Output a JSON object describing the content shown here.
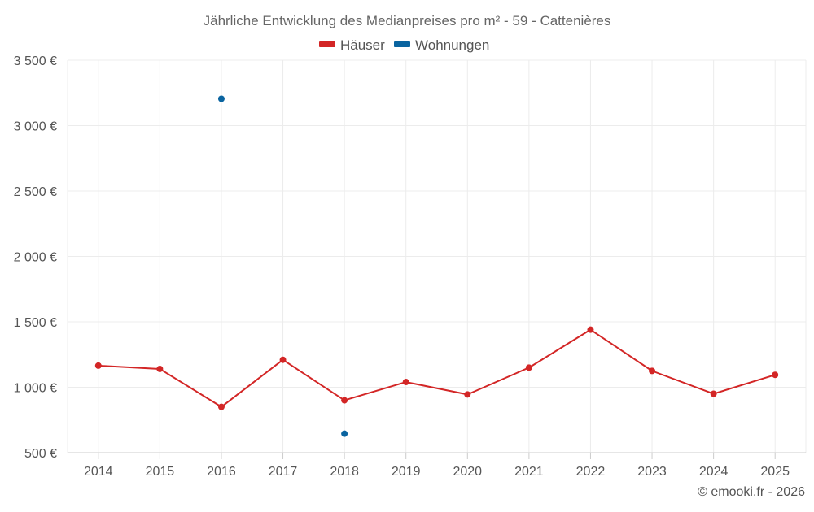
{
  "chart_data": {
    "type": "line",
    "title": "Jährliche Entwicklung des Medianpreises pro m² - 59 - Cattenières",
    "categories": [
      "2014",
      "2015",
      "2016",
      "2017",
      "2018",
      "2019",
      "2020",
      "2021",
      "2022",
      "2023",
      "2024",
      "2025"
    ],
    "series": [
      {
        "name": "Häuser",
        "color": "#d32626",
        "values": [
          1165,
          1140,
          850,
          1210,
          900,
          1040,
          945,
          1150,
          1440,
          1125,
          950,
          1095
        ]
      },
      {
        "name": "Wohnungen",
        "color": "#0a64a0",
        "values": [
          null,
          null,
          3205,
          null,
          645,
          null,
          null,
          null,
          null,
          null,
          null,
          null
        ]
      }
    ],
    "ylim": [
      500,
      3500
    ],
    "yticks": [
      500,
      1000,
      1500,
      2000,
      2500,
      3000,
      3500
    ],
    "ytick_labels": [
      "500 €",
      "1 000 €",
      "1 500 €",
      "2 000 €",
      "2 500 €",
      "3 000 €",
      "3 500 €"
    ],
    "xlabel": "",
    "ylabel": "",
    "grid": true,
    "legend_position": "top-center",
    "credit": "© emooki.fr - 2026"
  }
}
